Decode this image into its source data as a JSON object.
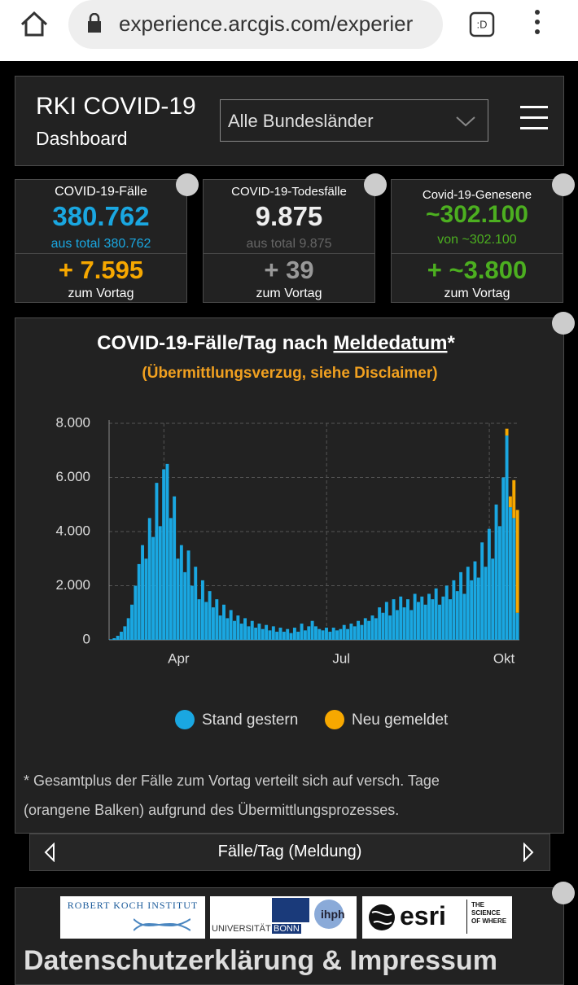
{
  "browser": {
    "url": "experience.arcgis.com/experier"
  },
  "header": {
    "title": "RKI COVID-19",
    "subtitle": "Dashboard",
    "dropdown": "Alle Bundesländer"
  },
  "cards": [
    {
      "label": "COVID-19-Fälle",
      "value": "380.762",
      "total": "aus total 380.762",
      "delta": "+ 7.595",
      "delta_label": "zum Vortag"
    },
    {
      "label": "COVID-19-Todesfälle",
      "value": "9.875",
      "total": "aus total 9.875",
      "delta": "+ 39",
      "delta_label": "zum Vortag"
    },
    {
      "label": "Covid-19-Genesene",
      "value": "~302.100",
      "total": "von ~302.100",
      "delta": "+ ~3.800",
      "delta_label": "zum Vortag"
    }
  ],
  "chart_data": {
    "type": "bar",
    "stacked": true,
    "title": "COVID-19-Fälle/Tag nach ",
    "title_link": "Meldedatum",
    "title_suffix": "*",
    "subtitle": "(Übermittlungsverzug, siehe Disclaimer)",
    "series": [
      {
        "name": "Stand gestern",
        "color": "#1aa7e1",
        "values": [
          20,
          60,
          150,
          300,
          500,
          800,
          1300,
          2000,
          2800,
          3500,
          3000,
          4500,
          3800,
          5800,
          4200,
          6300,
          6500,
          4500,
          5300,
          3000,
          3500,
          2500,
          3300,
          2000,
          2700,
          1500,
          2200,
          1400,
          1800,
          1200,
          1500,
          900,
          1300,
          800,
          1100,
          700,
          900,
          600,
          800,
          500,
          700,
          450,
          600,
          400,
          550,
          350,
          500,
          300,
          450,
          300,
          400,
          250,
          450,
          300,
          600,
          350,
          500,
          700,
          500,
          400,
          350,
          450,
          300,
          450,
          350,
          400,
          550,
          400,
          600,
          500,
          700,
          550,
          800,
          700,
          900,
          800,
          1200,
          1000,
          1400,
          900,
          1500,
          1100,
          1600,
          1200,
          1500,
          1100,
          1700,
          1400,
          1600,
          1300,
          1700,
          1500,
          1900,
          1300,
          1600,
          2000,
          1500,
          2200,
          1800,
          2500,
          1700,
          2700,
          2200,
          2900,
          2300,
          3600,
          2700,
          4100,
          3000,
          5000,
          4200,
          6000,
          7550,
          4900,
          4500,
          1000
        ]
      },
      {
        "name": "Neu gemeldet",
        "color": "#f7a800",
        "values": [
          0,
          0,
          0,
          0,
          0,
          0,
          0,
          0,
          0,
          0,
          0,
          0,
          0,
          0,
          0,
          0,
          0,
          0,
          0,
          0,
          0,
          0,
          0,
          0,
          0,
          0,
          0,
          0,
          0,
          0,
          0,
          0,
          0,
          0,
          0,
          0,
          0,
          0,
          0,
          0,
          0,
          0,
          0,
          0,
          0,
          0,
          0,
          0,
          0,
          0,
          0,
          0,
          0,
          0,
          0,
          0,
          0,
          0,
          0,
          0,
          0,
          0,
          0,
          0,
          0,
          0,
          0,
          0,
          0,
          0,
          0,
          0,
          0,
          0,
          0,
          0,
          0,
          0,
          0,
          0,
          0,
          0,
          0,
          0,
          0,
          0,
          0,
          0,
          0,
          0,
          0,
          0,
          0,
          0,
          0,
          0,
          0,
          0,
          0,
          0,
          0,
          0,
          0,
          0,
          0,
          0,
          0,
          0,
          0,
          0,
          0,
          0,
          250,
          400,
          1400,
          3800
        ]
      }
    ],
    "ylim": [
      0,
      8000
    ],
    "yticks": [
      0,
      {
        "value": 2000,
        "label": "2.000"
      },
      {
        "value": 4000,
        "label": "4.000"
      },
      {
        "value": 6000,
        "label": "6.000"
      },
      {
        "value": 8000,
        "label": "8.000"
      }
    ],
    "xticks": [
      {
        "value": 15,
        "label": "Apr"
      },
      {
        "value": 61,
        "label": "Jul"
      },
      {
        "value": 107,
        "label": "Okt"
      }
    ],
    "grid": true,
    "legend": "bottom"
  },
  "footnote": [
    "* Gesamtplus der Fälle zum Vortag verteilt sich auf versch. Tage",
    "(orangene Balken) aufgrund des Übermittlungsprozesses."
  ],
  "nav": {
    "label": "Fälle/Tag (Meldung)"
  },
  "footer": {
    "rki": "ROBERT KOCH INSTITUT",
    "uni": "UNIVERSITÄT",
    "bonn": "BONN",
    "ihph": "ihph",
    "esri": "esri",
    "esri_tag": "THE SCIENCE OF WHERE",
    "heading": "Datenschutzerklärung & Impressum"
  }
}
